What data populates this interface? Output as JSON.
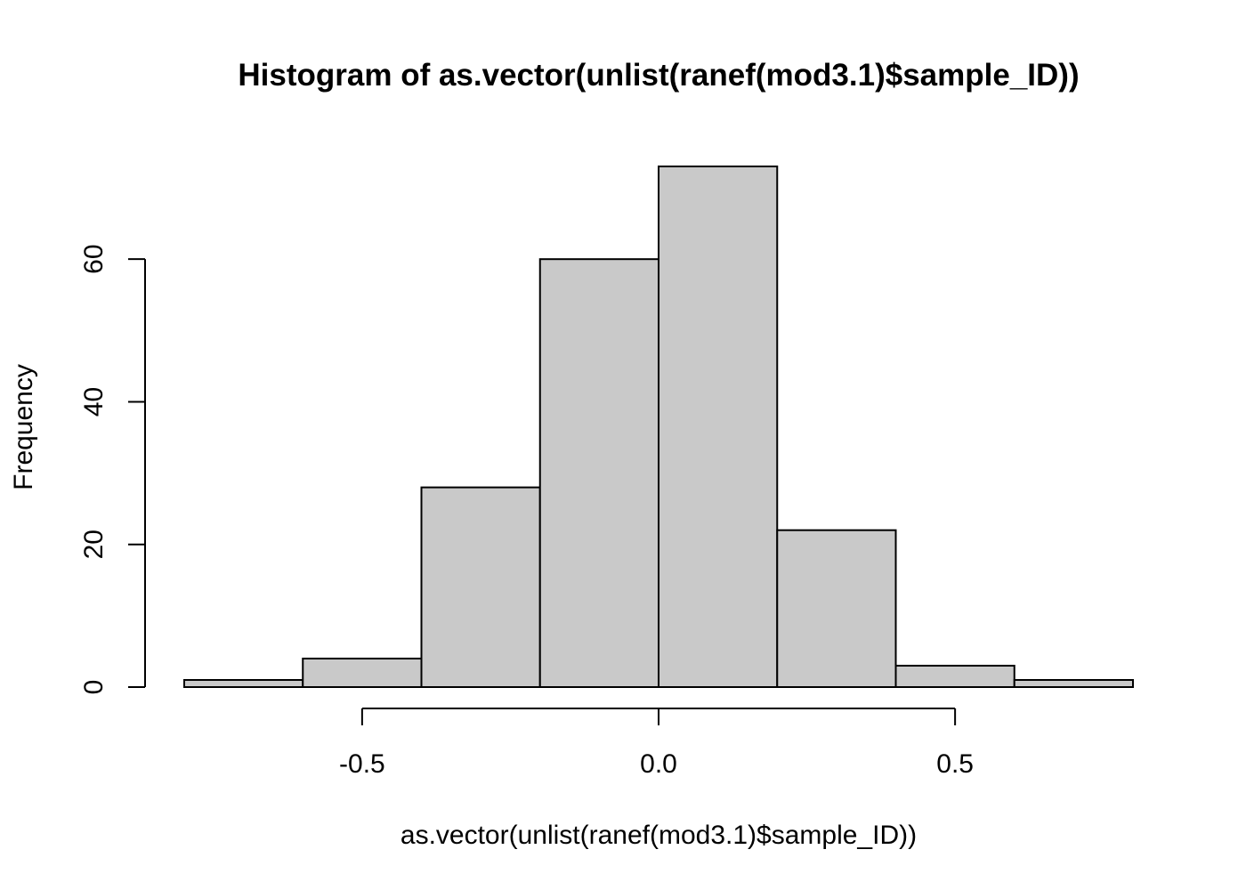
{
  "chart_data": {
    "type": "bar",
    "title": "Histogram of as.vector(unlist(ranef(mod3.1)$sample_ID))",
    "xlabel": "as.vector(unlist(ranef(mod3.1)$sample_ID))",
    "ylabel": "Frequency",
    "bins": [
      {
        "from": -0.8,
        "to": -0.6,
        "count": 1
      },
      {
        "from": -0.6,
        "to": -0.4,
        "count": 4
      },
      {
        "from": -0.4,
        "to": -0.2,
        "count": 28
      },
      {
        "from": -0.2,
        "to": 0.0,
        "count": 60
      },
      {
        "from": 0.0,
        "to": 0.2,
        "count": 73
      },
      {
        "from": 0.2,
        "to": 0.4,
        "count": 22
      },
      {
        "from": 0.4,
        "to": 0.6,
        "count": 3
      },
      {
        "from": 0.6,
        "to": 0.8,
        "count": 1
      }
    ],
    "xlim": [
      -0.8,
      0.8
    ],
    "ylim": [
      0,
      73
    ],
    "x_ticks": [
      {
        "value": -0.5,
        "label": "-0.5"
      },
      {
        "value": 0.0,
        "label": "0.0"
      },
      {
        "value": 0.5,
        "label": "0.5"
      }
    ],
    "y_ticks": [
      {
        "value": 0,
        "label": "0"
      },
      {
        "value": 20,
        "label": "20"
      },
      {
        "value": 40,
        "label": "40"
      },
      {
        "value": 60,
        "label": "60"
      }
    ],
    "bar_color": "#c9c9c9",
    "grid": false
  }
}
